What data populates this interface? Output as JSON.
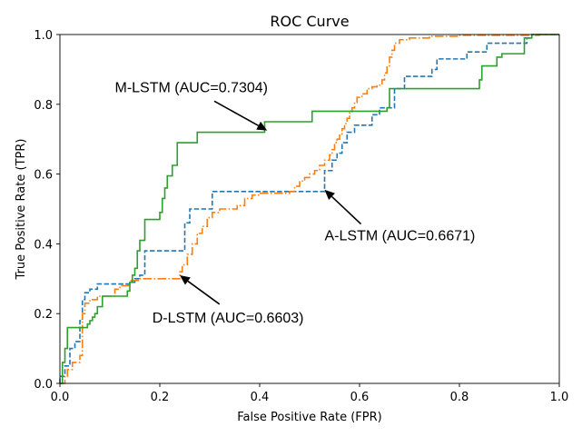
{
  "chart_data": {
    "type": "line",
    "title": "ROC Curve",
    "xlabel": "False Positive Rate (FPR)",
    "ylabel": "True Positive Rate (TPR)",
    "xlim": [
      0,
      1
    ],
    "ylim": [
      0,
      1
    ],
    "xticks": [
      "0.0",
      "0.2",
      "0.4",
      "0.6",
      "0.8",
      "1.0"
    ],
    "yticks": [
      "0.0",
      "0.2",
      "0.4",
      "0.6",
      "0.8",
      "1.0"
    ],
    "grid": false,
    "series": [
      {
        "color": "#1f77b4",
        "dash": "dashed",
        "points": [
          [
            0.0,
            0.0
          ],
          [
            0.0,
            0.02
          ],
          [
            0.01,
            0.02
          ],
          [
            0.01,
            0.05
          ],
          [
            0.02,
            0.05
          ],
          [
            0.02,
            0.1
          ],
          [
            0.03,
            0.1
          ],
          [
            0.03,
            0.12
          ],
          [
            0.04,
            0.12
          ],
          [
            0.04,
            0.18
          ],
          [
            0.045,
            0.18
          ],
          [
            0.045,
            0.24
          ],
          [
            0.05,
            0.24
          ],
          [
            0.05,
            0.26
          ],
          [
            0.06,
            0.26
          ],
          [
            0.06,
            0.27
          ],
          [
            0.075,
            0.27
          ],
          [
            0.075,
            0.285
          ],
          [
            0.14,
            0.285
          ],
          [
            0.14,
            0.29
          ],
          [
            0.15,
            0.29
          ],
          [
            0.15,
            0.3
          ],
          [
            0.16,
            0.3
          ],
          [
            0.16,
            0.31
          ],
          [
            0.17,
            0.31
          ],
          [
            0.17,
            0.38
          ],
          [
            0.25,
            0.38
          ],
          [
            0.25,
            0.46
          ],
          [
            0.26,
            0.46
          ],
          [
            0.26,
            0.5
          ],
          [
            0.305,
            0.5
          ],
          [
            0.305,
            0.55
          ],
          [
            0.53,
            0.55
          ],
          [
            0.53,
            0.61
          ],
          [
            0.545,
            0.61
          ],
          [
            0.545,
            0.64
          ],
          [
            0.555,
            0.64
          ],
          [
            0.555,
            0.66
          ],
          [
            0.565,
            0.66
          ],
          [
            0.565,
            0.69
          ],
          [
            0.575,
            0.69
          ],
          [
            0.575,
            0.72
          ],
          [
            0.59,
            0.72
          ],
          [
            0.59,
            0.74
          ],
          [
            0.625,
            0.74
          ],
          [
            0.625,
            0.77
          ],
          [
            0.64,
            0.77
          ],
          [
            0.64,
            0.79
          ],
          [
            0.67,
            0.79
          ],
          [
            0.67,
            0.845
          ],
          [
            0.69,
            0.845
          ],
          [
            0.69,
            0.88
          ],
          [
            0.745,
            0.88
          ],
          [
            0.745,
            0.9
          ],
          [
            0.755,
            0.9
          ],
          [
            0.755,
            0.93
          ],
          [
            0.815,
            0.93
          ],
          [
            0.815,
            0.95
          ],
          [
            0.855,
            0.95
          ],
          [
            0.855,
            0.975
          ],
          [
            0.935,
            0.975
          ],
          [
            0.935,
            0.99
          ],
          [
            0.945,
            0.99
          ],
          [
            0.945,
            1.0
          ],
          [
            1.0,
            1.0
          ]
        ]
      },
      {
        "color": "#ff7f0e",
        "dash": "dashdot",
        "points": [
          [
            0.0,
            0.0
          ],
          [
            0.01,
            0.0
          ],
          [
            0.01,
            0.02
          ],
          [
            0.015,
            0.02
          ],
          [
            0.015,
            0.04
          ],
          [
            0.025,
            0.04
          ],
          [
            0.025,
            0.06
          ],
          [
            0.04,
            0.06
          ],
          [
            0.04,
            0.08
          ],
          [
            0.045,
            0.08
          ],
          [
            0.045,
            0.2
          ],
          [
            0.05,
            0.2
          ],
          [
            0.05,
            0.23
          ],
          [
            0.06,
            0.23
          ],
          [
            0.06,
            0.24
          ],
          [
            0.075,
            0.24
          ],
          [
            0.075,
            0.25
          ],
          [
            0.11,
            0.25
          ],
          [
            0.11,
            0.27
          ],
          [
            0.12,
            0.27
          ],
          [
            0.12,
            0.28
          ],
          [
            0.14,
            0.28
          ],
          [
            0.14,
            0.295
          ],
          [
            0.16,
            0.295
          ],
          [
            0.16,
            0.3
          ],
          [
            0.24,
            0.3
          ],
          [
            0.24,
            0.32
          ],
          [
            0.245,
            0.32
          ],
          [
            0.245,
            0.34
          ],
          [
            0.255,
            0.34
          ],
          [
            0.255,
            0.37
          ],
          [
            0.265,
            0.37
          ],
          [
            0.265,
            0.4
          ],
          [
            0.275,
            0.4
          ],
          [
            0.275,
            0.43
          ],
          [
            0.285,
            0.43
          ],
          [
            0.285,
            0.45
          ],
          [
            0.295,
            0.45
          ],
          [
            0.295,
            0.475
          ],
          [
            0.305,
            0.475
          ],
          [
            0.305,
            0.49
          ],
          [
            0.32,
            0.49
          ],
          [
            0.32,
            0.5
          ],
          [
            0.355,
            0.5
          ],
          [
            0.355,
            0.51
          ],
          [
            0.37,
            0.51
          ],
          [
            0.37,
            0.53
          ],
          [
            0.385,
            0.53
          ],
          [
            0.385,
            0.54
          ],
          [
            0.4,
            0.54
          ],
          [
            0.4,
            0.545
          ],
          [
            0.46,
            0.545
          ],
          [
            0.46,
            0.55
          ],
          [
            0.47,
            0.55
          ],
          [
            0.47,
            0.565
          ],
          [
            0.48,
            0.565
          ],
          [
            0.48,
            0.58
          ],
          [
            0.49,
            0.58
          ],
          [
            0.49,
            0.59
          ],
          [
            0.5,
            0.59
          ],
          [
            0.5,
            0.6
          ],
          [
            0.51,
            0.6
          ],
          [
            0.51,
            0.61
          ],
          [
            0.52,
            0.61
          ],
          [
            0.52,
            0.625
          ],
          [
            0.53,
            0.625
          ],
          [
            0.53,
            0.64
          ],
          [
            0.54,
            0.64
          ],
          [
            0.54,
            0.655
          ],
          [
            0.545,
            0.655
          ],
          [
            0.545,
            0.67
          ],
          [
            0.55,
            0.67
          ],
          [
            0.55,
            0.69
          ],
          [
            0.555,
            0.69
          ],
          [
            0.555,
            0.7
          ],
          [
            0.56,
            0.7
          ],
          [
            0.56,
            0.715
          ],
          [
            0.565,
            0.715
          ],
          [
            0.565,
            0.73
          ],
          [
            0.57,
            0.73
          ],
          [
            0.57,
            0.745
          ],
          [
            0.575,
            0.745
          ],
          [
            0.575,
            0.76
          ],
          [
            0.58,
            0.76
          ],
          [
            0.58,
            0.775
          ],
          [
            0.585,
            0.775
          ],
          [
            0.585,
            0.79
          ],
          [
            0.59,
            0.79
          ],
          [
            0.59,
            0.805
          ],
          [
            0.595,
            0.805
          ],
          [
            0.595,
            0.82
          ],
          [
            0.605,
            0.82
          ],
          [
            0.605,
            0.83
          ],
          [
            0.615,
            0.83
          ],
          [
            0.615,
            0.845
          ],
          [
            0.625,
            0.845
          ],
          [
            0.625,
            0.85
          ],
          [
            0.635,
            0.85
          ],
          [
            0.635,
            0.855
          ],
          [
            0.645,
            0.855
          ],
          [
            0.645,
            0.87
          ],
          [
            0.65,
            0.87
          ],
          [
            0.65,
            0.89
          ],
          [
            0.655,
            0.89
          ],
          [
            0.655,
            0.91
          ],
          [
            0.66,
            0.91
          ],
          [
            0.66,
            0.935
          ],
          [
            0.665,
            0.935
          ],
          [
            0.665,
            0.955
          ],
          [
            0.67,
            0.955
          ],
          [
            0.67,
            0.975
          ],
          [
            0.68,
            0.975
          ],
          [
            0.68,
            0.985
          ],
          [
            0.7,
            0.985
          ],
          [
            0.7,
            0.99
          ],
          [
            0.74,
            0.99
          ],
          [
            0.74,
            0.995
          ],
          [
            0.8,
            0.995
          ],
          [
            0.8,
            0.998
          ],
          [
            0.96,
            0.998
          ],
          [
            0.96,
            1.0
          ],
          [
            1.0,
            1.0
          ]
        ]
      },
      {
        "color": "#2ca02c",
        "dash": "solid",
        "points": [
          [
            0.0,
            0.0
          ],
          [
            0.005,
            0.0
          ],
          [
            0.005,
            0.06
          ],
          [
            0.01,
            0.06
          ],
          [
            0.01,
            0.1
          ],
          [
            0.015,
            0.1
          ],
          [
            0.015,
            0.16
          ],
          [
            0.055,
            0.16
          ],
          [
            0.055,
            0.17
          ],
          [
            0.06,
            0.17
          ],
          [
            0.06,
            0.18
          ],
          [
            0.065,
            0.18
          ],
          [
            0.065,
            0.19
          ],
          [
            0.07,
            0.19
          ],
          [
            0.07,
            0.2
          ],
          [
            0.075,
            0.2
          ],
          [
            0.075,
            0.22
          ],
          [
            0.085,
            0.22
          ],
          [
            0.085,
            0.25
          ],
          [
            0.135,
            0.25
          ],
          [
            0.135,
            0.265
          ],
          [
            0.14,
            0.265
          ],
          [
            0.14,
            0.29
          ],
          [
            0.145,
            0.29
          ],
          [
            0.145,
            0.31
          ],
          [
            0.15,
            0.31
          ],
          [
            0.15,
            0.33
          ],
          [
            0.155,
            0.33
          ],
          [
            0.155,
            0.38
          ],
          [
            0.16,
            0.38
          ],
          [
            0.16,
            0.41
          ],
          [
            0.17,
            0.41
          ],
          [
            0.17,
            0.47
          ],
          [
            0.2,
            0.47
          ],
          [
            0.2,
            0.49
          ],
          [
            0.205,
            0.49
          ],
          [
            0.205,
            0.53
          ],
          [
            0.21,
            0.53
          ],
          [
            0.21,
            0.56
          ],
          [
            0.215,
            0.56
          ],
          [
            0.215,
            0.595
          ],
          [
            0.225,
            0.595
          ],
          [
            0.225,
            0.625
          ],
          [
            0.235,
            0.625
          ],
          [
            0.235,
            0.69
          ],
          [
            0.275,
            0.69
          ],
          [
            0.275,
            0.72
          ],
          [
            0.41,
            0.72
          ],
          [
            0.41,
            0.75
          ],
          [
            0.505,
            0.75
          ],
          [
            0.505,
            0.78
          ],
          [
            0.655,
            0.78
          ],
          [
            0.655,
            0.79
          ],
          [
            0.66,
            0.79
          ],
          [
            0.66,
            0.845
          ],
          [
            0.84,
            0.845
          ],
          [
            0.84,
            0.87
          ],
          [
            0.845,
            0.87
          ],
          [
            0.845,
            0.91
          ],
          [
            0.875,
            0.91
          ],
          [
            0.875,
            0.935
          ],
          [
            0.885,
            0.935
          ],
          [
            0.885,
            0.945
          ],
          [
            0.93,
            0.945
          ],
          [
            0.93,
            0.99
          ],
          [
            0.945,
            0.99
          ],
          [
            0.945,
            1.0
          ],
          [
            1.0,
            1.0
          ]
        ]
      }
    ],
    "annotations": [
      {
        "text": "M-LSTM (AUC=0.7304)",
        "text_at": [
          0.11,
          0.835
        ],
        "arrow_to": [
          0.415,
          0.725
        ]
      },
      {
        "text": "A-LSTM (AUC=0.6671)",
        "text_at": [
          0.53,
          0.41
        ],
        "arrow_to": [
          0.53,
          0.555
        ]
      },
      {
        "text": "D-LSTM (AUC=0.6603)",
        "text_at": [
          0.185,
          0.175
        ],
        "arrow_to": [
          0.24,
          0.31
        ]
      }
    ]
  }
}
